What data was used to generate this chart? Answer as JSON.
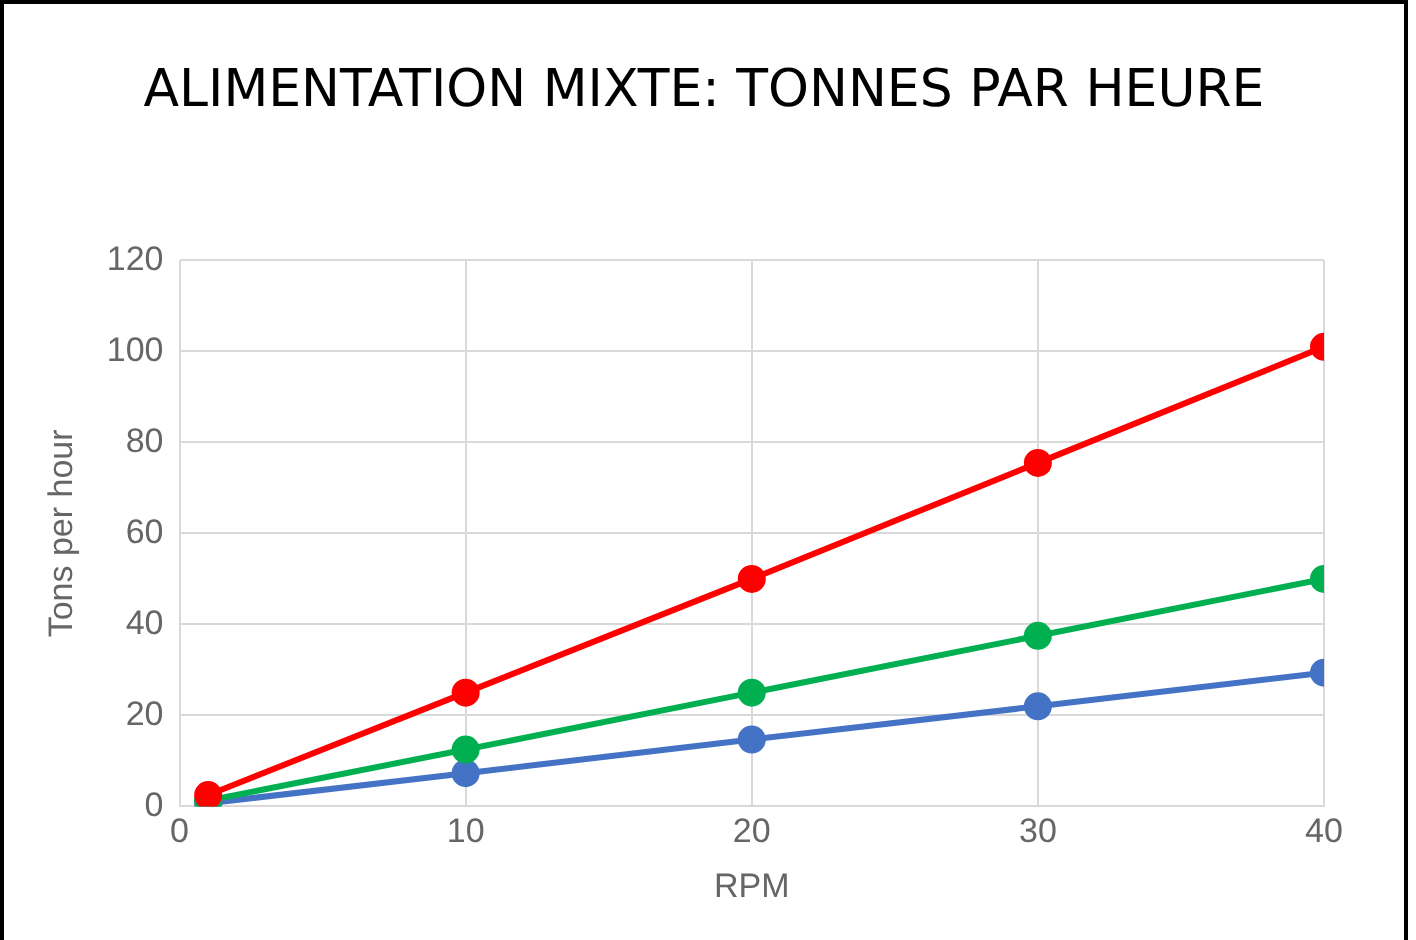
{
  "chart_data": {
    "type": "line",
    "title": "ALIMENTATION MIXTE: TONNES PAR HEURE",
    "xlabel": "RPM",
    "ylabel": "Tons per hour",
    "x": [
      1,
      10,
      20,
      30,
      40
    ],
    "series": [
      {
        "color": "#ff0000",
        "values": [
          2.5,
          25,
          50,
          75.5,
          101
        ]
      },
      {
        "color": "#00b050",
        "values": [
          1.3,
          12.5,
          25,
          37.5,
          50
        ]
      },
      {
        "color": "#4472c4",
        "values": [
          0.7,
          7.3,
          14.7,
          22,
          29.4
        ]
      }
    ],
    "xlim": [
      0,
      40
    ],
    "xticks": [
      0,
      10,
      20,
      30,
      40
    ],
    "ylim": [
      0,
      120
    ],
    "yticks": [
      0,
      20,
      40,
      60,
      80,
      100,
      120
    ],
    "grid": true,
    "legend": false,
    "marker": "circle",
    "line_style": "solid"
  }
}
